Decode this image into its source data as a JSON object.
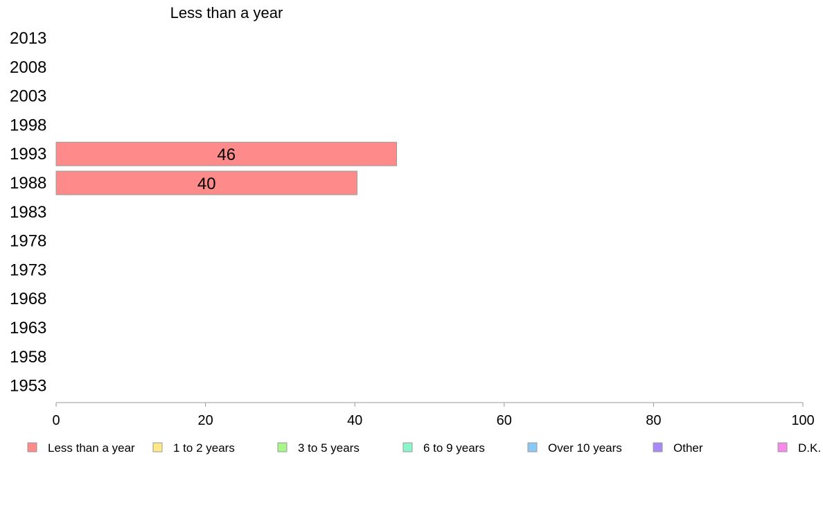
{
  "chart_data": {
    "type": "bar",
    "orientation": "horizontal",
    "panel_title": "Less than a year",
    "categories": [
      "2013",
      "2008",
      "2003",
      "1998",
      "1993",
      "1988",
      "1983",
      "1978",
      "1973",
      "1968",
      "1963",
      "1958",
      "1953"
    ],
    "series": [
      {
        "name": "Less than a year",
        "color": "#ff8a8a",
        "values": [
          null,
          null,
          null,
          null,
          45.6,
          40.3,
          null,
          null,
          null,
          null,
          null,
          null,
          null
        ],
        "labels": [
          "",
          "",
          "",
          "",
          "46",
          "40",
          "",
          "",
          "",
          "",
          "",
          "",
          ""
        ]
      }
    ],
    "xlim": [
      0,
      100
    ],
    "xticks": [
      0,
      20,
      40,
      60,
      80,
      100
    ],
    "xtick_labels": [
      "0",
      "20",
      "40",
      "60",
      "80",
      "100"
    ],
    "grid": false,
    "legend": {
      "placement": "bottom",
      "items": [
        {
          "label": "Less than a year",
          "color": "#ff8a8a"
        },
        {
          "label": "1 to 2 years",
          "color": "#ffe88a"
        },
        {
          "label": "3 to 5 years",
          "color": "#a8f58a"
        },
        {
          "label": "6 to 9 years",
          "color": "#8af5c8"
        },
        {
          "label": "Over 10 years",
          "color": "#8ac8f5"
        },
        {
          "label": "Other",
          "color": "#a88af5"
        },
        {
          "label": "D.K.",
          "color": "#f58ae8"
        }
      ]
    }
  }
}
